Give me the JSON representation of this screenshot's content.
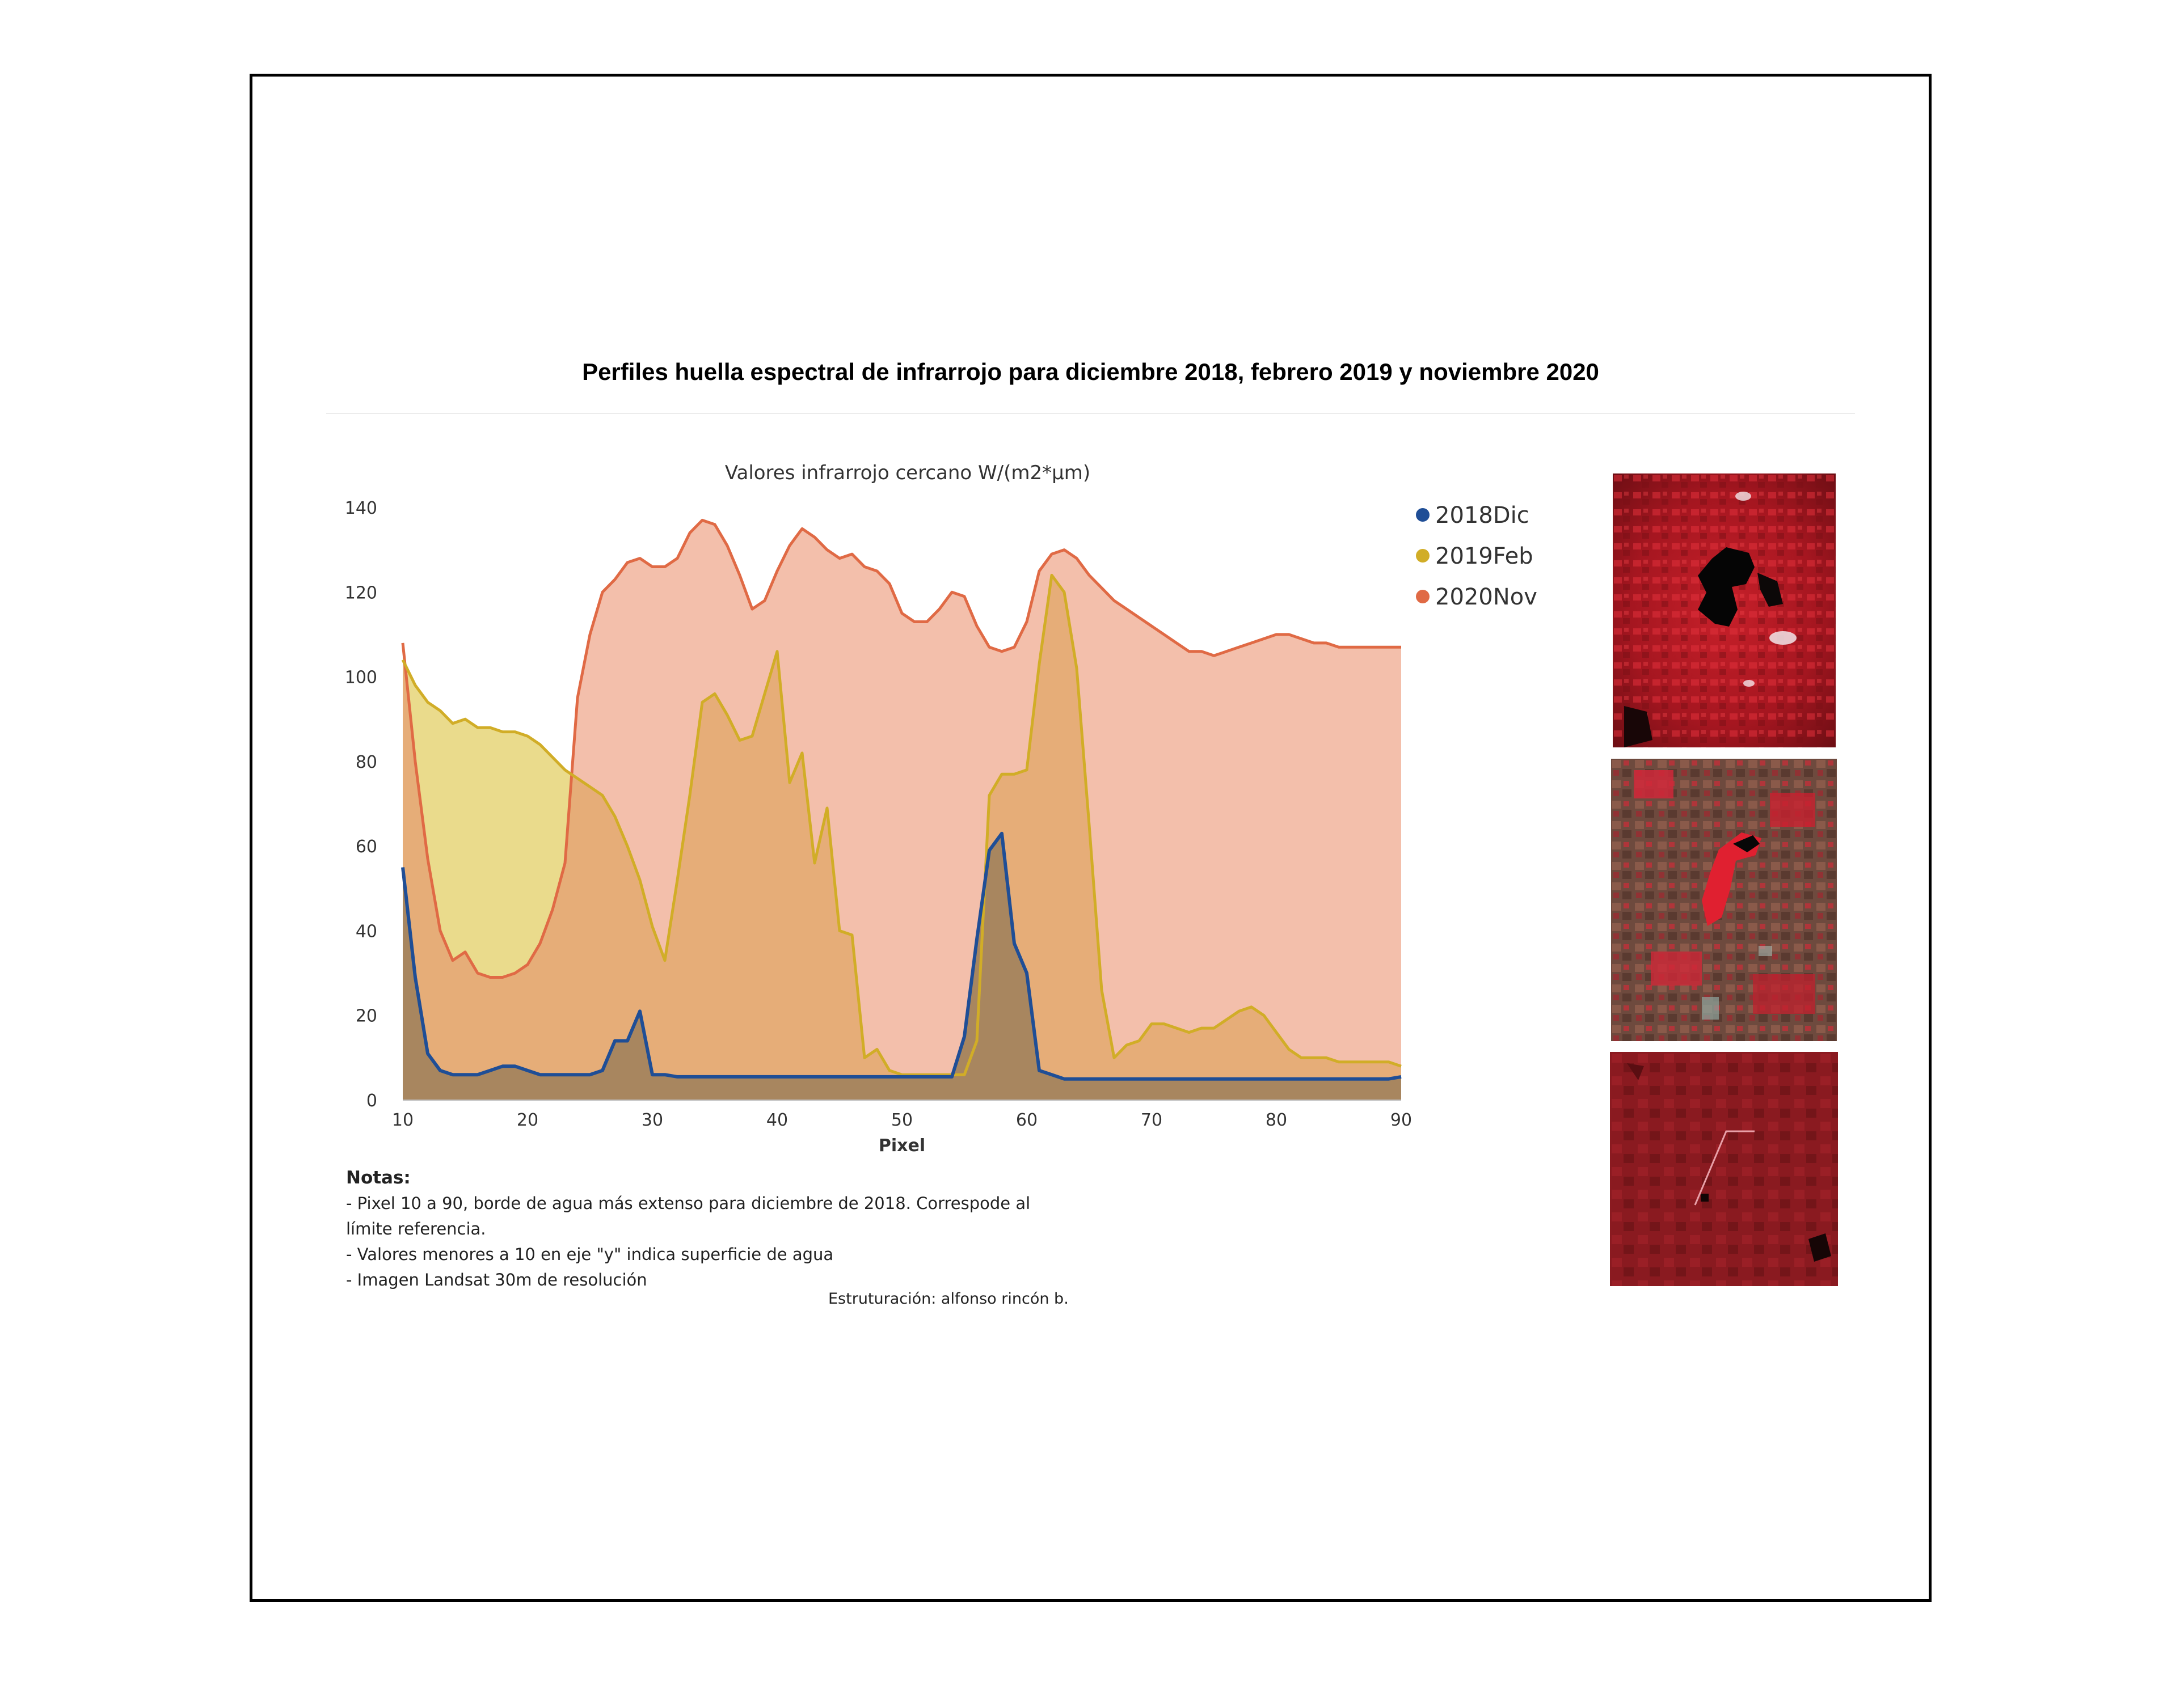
{
  "title": "Perfiles huella espectral de infrarrojo para diciembre 2018, febrero 2019 y noviembre 2020",
  "notes": {
    "heading": "Notas:",
    "lines": [
      "- Pixel 10 a 90, borde de agua más extenso para diciembre de 2018.  Correspode al",
      "límite referencia.",
      "- Valores menores a 10 en eje \"y\" indica superficie de agua",
      "- Imagen Landsat 30m de resolución"
    ],
    "credit": "Estruturación: alfonso rincón b."
  },
  "chart_data": {
    "type": "area",
    "title": "Valores infrarrojo cercano W/(m2*μm)",
    "xlabel": "Pixel",
    "ylabel": "",
    "xlim": [
      10,
      90
    ],
    "ylim": [
      0,
      140
    ],
    "x_ticks": [
      10,
      20,
      30,
      40,
      50,
      60,
      70,
      80,
      90
    ],
    "y_ticks": [
      0,
      20,
      40,
      60,
      80,
      100,
      120,
      140
    ],
    "grid": false,
    "legend_position": "top-right",
    "x": [
      10,
      11,
      12,
      13,
      14,
      15,
      16,
      17,
      18,
      19,
      20,
      21,
      22,
      23,
      24,
      25,
      26,
      27,
      28,
      29,
      30,
      31,
      32,
      33,
      34,
      35,
      36,
      37,
      38,
      39,
      40,
      41,
      42,
      43,
      44,
      45,
      46,
      47,
      48,
      49,
      50,
      51,
      52,
      53,
      54,
      55,
      56,
      57,
      58,
      59,
      60,
      61,
      62,
      63,
      64,
      65,
      66,
      67,
      68,
      69,
      70,
      71,
      72,
      73,
      74,
      75,
      76,
      77,
      78,
      79,
      80,
      81,
      82,
      83,
      84,
      85,
      86,
      87,
      88,
      89,
      90
    ],
    "series": [
      {
        "name": "2020Nov",
        "line_color": "#e06a45",
        "fill_color": "#f3bfab",
        "values": [
          108,
          80,
          57,
          40,
          33,
          35,
          30,
          29,
          29,
          30,
          32,
          37,
          45,
          56,
          95,
          110,
          120,
          123,
          127,
          128,
          126,
          126,
          128,
          134,
          137,
          136,
          131,
          124,
          116,
          118,
          125,
          131,
          135,
          133,
          130,
          128,
          129,
          126,
          125,
          122,
          115,
          113,
          113,
          116,
          120,
          119,
          112,
          107,
          106,
          107,
          113,
          125,
          129,
          130,
          128,
          124,
          121,
          118,
          116,
          114,
          112,
          110,
          108,
          106,
          106,
          105,
          106,
          107,
          108,
          109,
          110,
          110,
          109,
          108,
          108,
          107,
          107,
          107,
          107,
          107,
          107
        ]
      },
      {
        "name": "2019Feb",
        "line_color": "#d1ad27",
        "fill_color": "#eadb8c",
        "values": [
          104,
          98,
          94,
          92,
          89,
          90,
          88,
          88,
          87,
          87,
          86,
          84,
          81,
          78,
          76,
          74,
          72,
          67,
          60,
          52,
          41,
          33,
          52,
          72,
          94,
          96,
          91,
          85,
          86,
          96,
          106,
          75,
          82,
          56,
          69,
          40,
          39,
          10,
          12,
          7,
          6,
          6,
          6,
          6,
          6,
          6,
          14,
          72,
          77,
          77,
          78,
          103,
          124,
          120,
          102,
          65,
          26,
          10,
          13,
          14,
          18,
          18,
          17,
          16,
          17,
          17,
          19,
          21,
          22,
          20,
          16,
          12,
          10,
          10,
          10,
          9,
          9,
          9,
          9,
          9,
          8
        ]
      },
      {
        "name": "2018Dic",
        "line_color": "#1f4e96",
        "fill_color": "#a8865f",
        "values": [
          55,
          29,
          11,
          7,
          6,
          6,
          6,
          7,
          8,
          8,
          7,
          6,
          6,
          6,
          6,
          6,
          7,
          14,
          14,
          21,
          6,
          6,
          5.5,
          5.5,
          5.5,
          5.5,
          5.5,
          5.5,
          5.5,
          5.5,
          5.5,
          5.5,
          5.5,
          5.5,
          5.5,
          5.5,
          5.5,
          5.5,
          5.5,
          5.5,
          5.5,
          5.5,
          5.5,
          5.5,
          5.5,
          15,
          38,
          59,
          63,
          37,
          30,
          7,
          6,
          5,
          5,
          5,
          5,
          5,
          5,
          5,
          5,
          5,
          5,
          5,
          5,
          5,
          5,
          5,
          5,
          5,
          5,
          5,
          5,
          5,
          5,
          5,
          5,
          5,
          5,
          5,
          5.5
        ]
      }
    ]
  },
  "images": [
    {
      "name": "satellite-image-2018"
    },
    {
      "name": "satellite-image-2019"
    },
    {
      "name": "satellite-image-2020"
    }
  ],
  "colors": {
    "frame": "#000000",
    "axis_text": "#333333",
    "overlap_nov_feb": "#e6ad78"
  }
}
